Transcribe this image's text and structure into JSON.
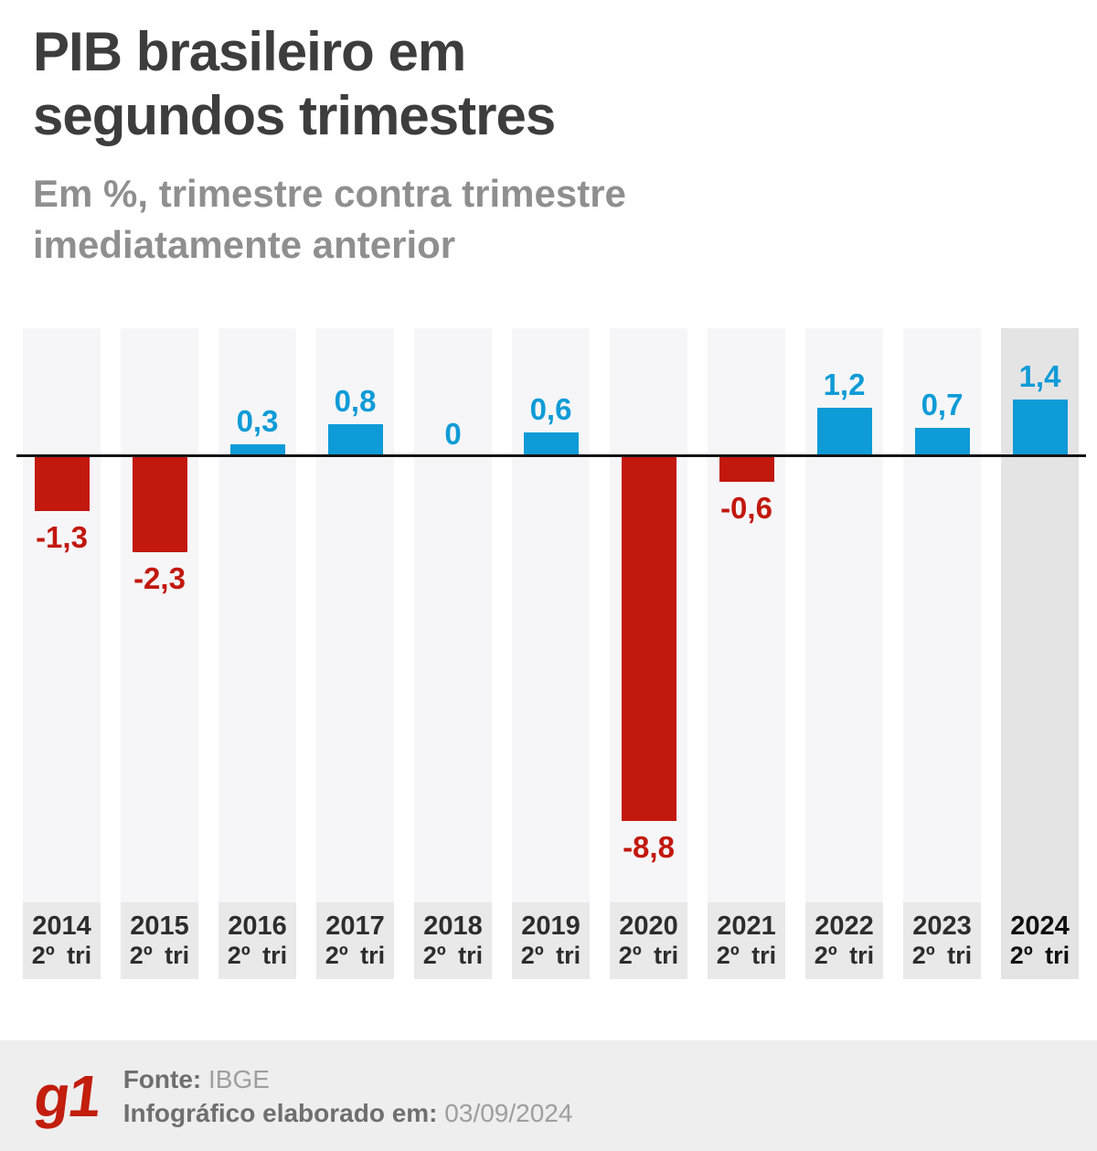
{
  "header": {
    "title": "PIB brasileiro em segundos trimestres",
    "subtitle": "Em %, trimestre contra trimestre imediatamente anterior"
  },
  "chart_data": {
    "type": "bar",
    "categories": [
      "2014",
      "2015",
      "2016",
      "2017",
      "2018",
      "2019",
      "2020",
      "2021",
      "2022",
      "2023",
      "2024"
    ],
    "period_label": "2º tri",
    "values": [
      -1.3,
      -2.3,
      0.3,
      0.8,
      0,
      0.6,
      -8.8,
      -0.6,
      1.2,
      0.7,
      1.4
    ],
    "value_labels": [
      "-1,3",
      "-2,3",
      "0,3",
      "0,8",
      "0",
      "0,6",
      "-8,8",
      "-0,6",
      "1,2",
      "0,7",
      "1,4"
    ],
    "highlighted_category": "2024",
    "unit": "%",
    "ylim": [
      -8.8,
      1.4
    ],
    "grid": false,
    "legend": false,
    "colors": {
      "positive_bar": "#0f9bd7",
      "negative_bar": "#c2180e",
      "column_background": "#f6f6f8",
      "column_label_background": "#e9e9e9",
      "highlight_column_background": "#e4e4e4",
      "zero_line": "#141414"
    }
  },
  "footer": {
    "logo_text": "g1",
    "source_label": "Fonte:",
    "source_value": "IBGE",
    "date_label": "Infográfico elaborado em:",
    "date_value": "03/09/2024"
  }
}
